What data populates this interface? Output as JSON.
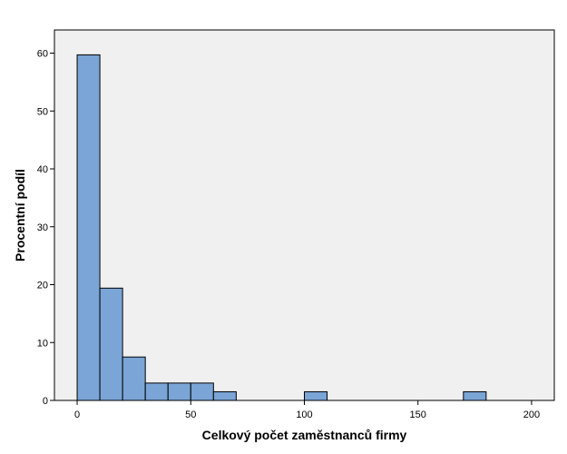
{
  "chart_data": {
    "type": "bar",
    "subtype": "histogram",
    "xlabel": "Celkový počet zaměstnanců firmy",
    "ylabel": "Procentní podíl",
    "xlim": [
      -10,
      210
    ],
    "ylim": [
      0,
      64
    ],
    "x_ticks": [
      0,
      50,
      100,
      150,
      200
    ],
    "y_ticks": [
      0,
      10,
      20,
      30,
      40,
      50,
      60
    ],
    "bin_width": 10,
    "bins": [
      {
        "start": 0,
        "end": 10,
        "value": 59.7
      },
      {
        "start": 10,
        "end": 20,
        "value": 19.4
      },
      {
        "start": 20,
        "end": 30,
        "value": 7.5
      },
      {
        "start": 30,
        "end": 40,
        "value": 3.0
      },
      {
        "start": 40,
        "end": 50,
        "value": 3.0
      },
      {
        "start": 50,
        "end": 60,
        "value": 3.0
      },
      {
        "start": 60,
        "end": 70,
        "value": 1.5
      },
      {
        "start": 100,
        "end": 110,
        "value": 1.5
      },
      {
        "start": 170,
        "end": 180,
        "value": 1.5
      }
    ],
    "grid": false,
    "legend": "none",
    "colors": {
      "bar_fill": "#7aa5d6",
      "bar_stroke": "#000000",
      "plot_background": "#f0f0f0",
      "page_background": "#ffffff"
    }
  }
}
